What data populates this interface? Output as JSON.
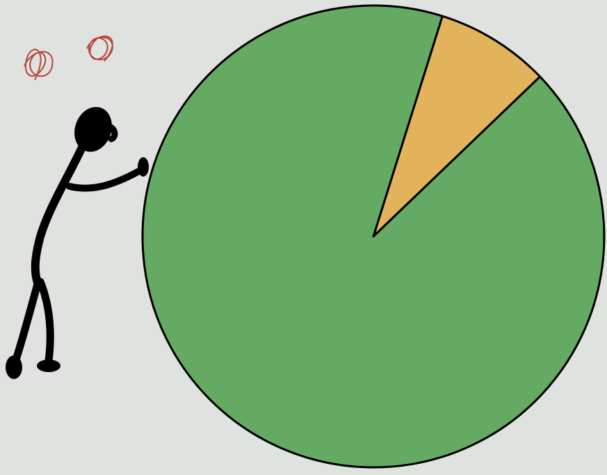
{
  "chart_data": {
    "type": "pie",
    "values": [
      8,
      92
    ],
    "colors": [
      "#e3b35c",
      "#65aa62"
    ]
  }
}
